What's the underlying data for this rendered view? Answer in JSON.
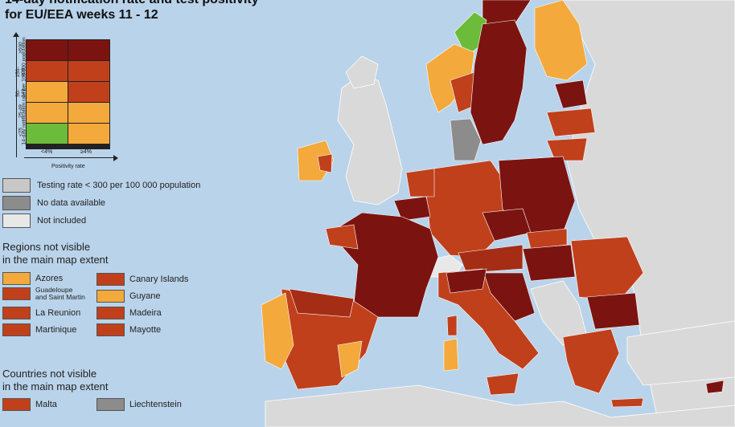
{
  "title": {
    "line1": "14-day notification rate and test positivity",
    "line2": "for EU/EEA weeks 11 - 12"
  },
  "colors": {
    "sea": "#b9d3ea",
    "non_eu_land": "#d9d9d9",
    "dark_red": "#7b1411",
    "red": "#c0401c",
    "mid_red": "#a52d16",
    "orange": "#f3a93b",
    "green": "#6dbb3a",
    "grey": "#8c8c8c",
    "light_grey": "#c8c8c8"
  },
  "matrix": {
    "y_title": "14-day notification rate per 100 000 population",
    "x_title": "Positivity rate",
    "rows": [
      "≥500",
      "150-499",
      "50-149",
      "25-49",
      "<25"
    ],
    "columns": [
      "<4%",
      "≥4%"
    ],
    "cells": [
      [
        "#7b1411",
        "#7b1411"
      ],
      [
        "#c0401c",
        "#c0401c"
      ],
      [
        "#f3a93b",
        "#c0401c"
      ],
      [
        "#f3a93b",
        "#f3a93b"
      ],
      [
        "#6dbb3a",
        "#f3a93b"
      ]
    ]
  },
  "legend": [
    {
      "label": "Testing rate < 300 per 100 000 population",
      "color": "#c8c8c8"
    },
    {
      "label": "No data available",
      "color": "#8c8c8c"
    },
    {
      "label": "Not included",
      "color": "#e8e8e8"
    }
  ],
  "regions_section": {
    "heading_line1": "Regions not visible",
    "heading_line2": "in the main map extent",
    "items": [
      {
        "label": "Azores",
        "color": "#f3a93b"
      },
      {
        "label": "Guadeloupe",
        "label2": "and Saint Martin",
        "color": "#c0401c"
      },
      {
        "label": "La Reunion",
        "color": "#c0401c"
      },
      {
        "label": "Martinique",
        "color": "#c0401c"
      },
      {
        "label": "Canary Islands",
        "color": "#c0401c"
      },
      {
        "label": "Guyane",
        "color": "#f3a93b"
      },
      {
        "label": "Madeira",
        "color": "#c0401c"
      },
      {
        "label": "Mayotte",
        "color": "#c0401c"
      }
    ]
  },
  "countries_section": {
    "heading_line1": "Countries not visible",
    "heading_line2": "in the main map extent",
    "items": [
      {
        "label": "Malta",
        "color": "#c0401c"
      },
      {
        "label": "Liechtenstein",
        "color": "#8c8c8c"
      }
    ]
  }
}
